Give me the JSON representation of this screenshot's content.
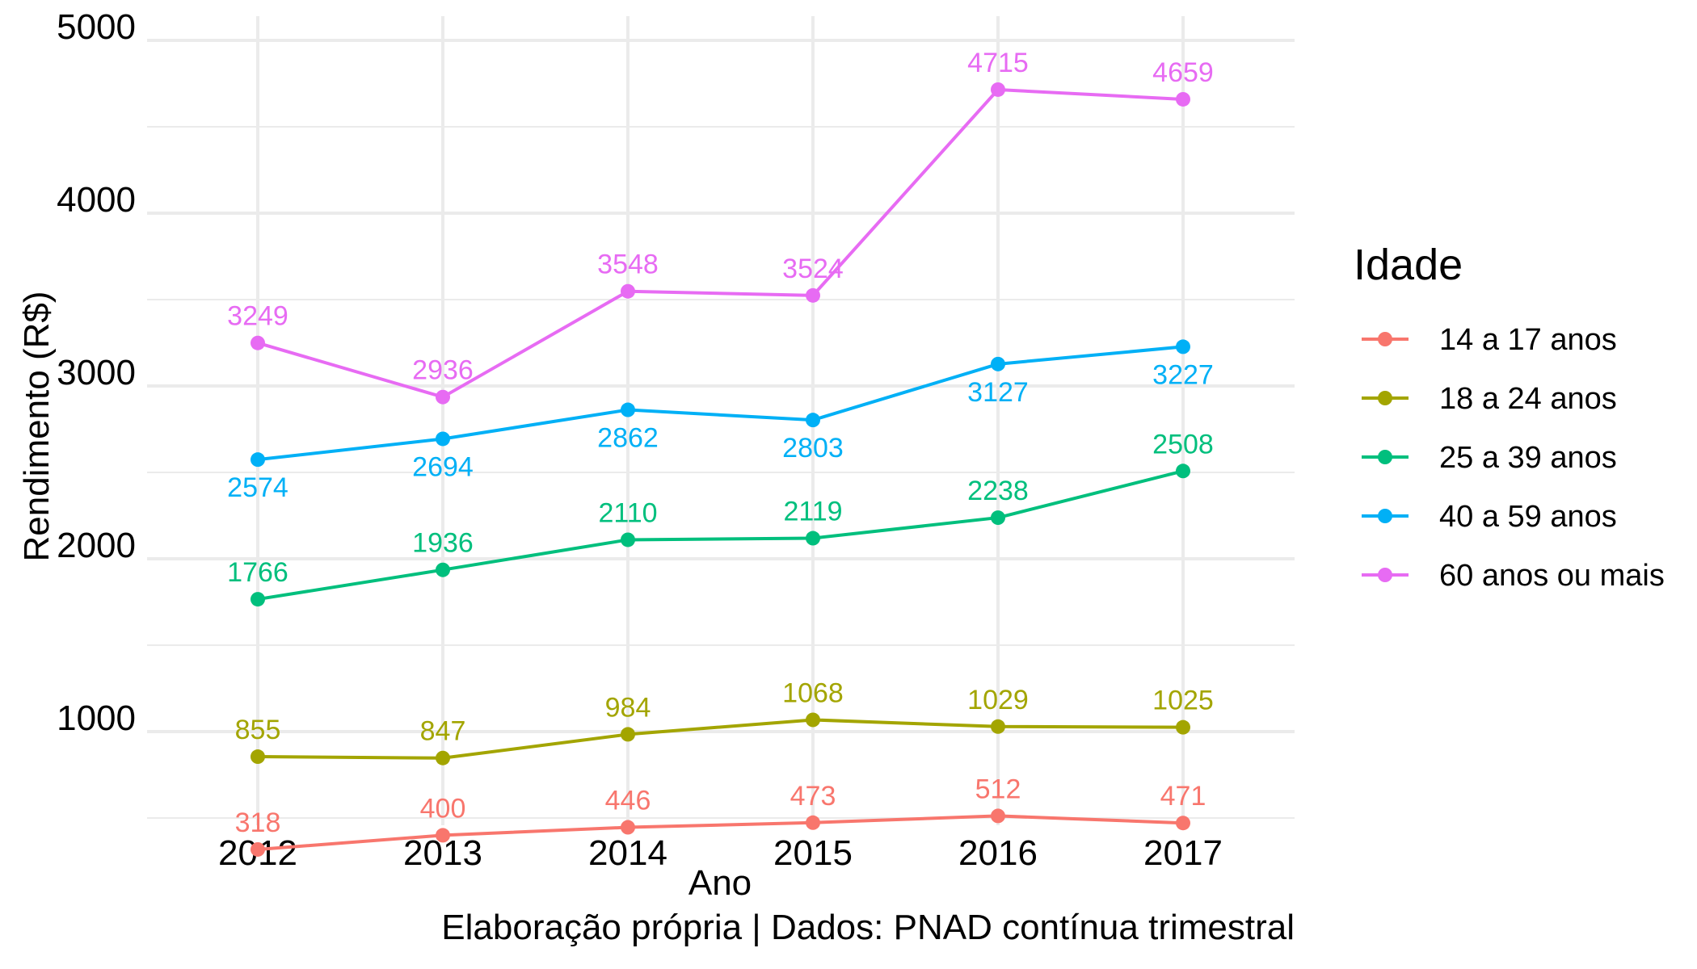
{
  "chart_data": {
    "type": "line",
    "x": [
      "2012",
      "2013",
      "2014",
      "2015",
      "2016",
      "2017"
    ],
    "series": [
      {
        "name": "14 a 17 anos",
        "color": "#F8766D",
        "values": [
          318,
          400,
          446,
          473,
          512,
          471
        ],
        "label_position": "above"
      },
      {
        "name": "18 a 24 anos",
        "color": "#A3A500",
        "values": [
          855,
          847,
          984,
          1068,
          1029,
          1025
        ],
        "label_position": "above"
      },
      {
        "name": "25 a 39 anos",
        "color": "#00BF7D",
        "values": [
          1766,
          1936,
          2110,
          2119,
          2238,
          2508
        ],
        "label_position": "above"
      },
      {
        "name": "40 a 59 anos",
        "color": "#00B0F6",
        "values": [
          2574,
          2694,
          2862,
          2803,
          3127,
          3227
        ],
        "label_position": "below"
      },
      {
        "name": "60 anos ou mais",
        "color": "#E76BF3",
        "values": [
          3249,
          2936,
          3548,
          3524,
          4715,
          4659
        ],
        "label_position": "above"
      }
    ],
    "y_ticks": [
      "1000",
      "2000",
      "3000",
      "4000",
      "5000"
    ],
    "ylim": [
      0,
      5000
    ],
    "xlabel": "Ano",
    "ylabel": "Rendimento (R$)",
    "legend_title": "Idade",
    "caption": "Elaboração própria | Dados: PNAD contínua trimestral",
    "legend_position": "right",
    "grid": true,
    "grid_color": "#EBEBEB"
  }
}
